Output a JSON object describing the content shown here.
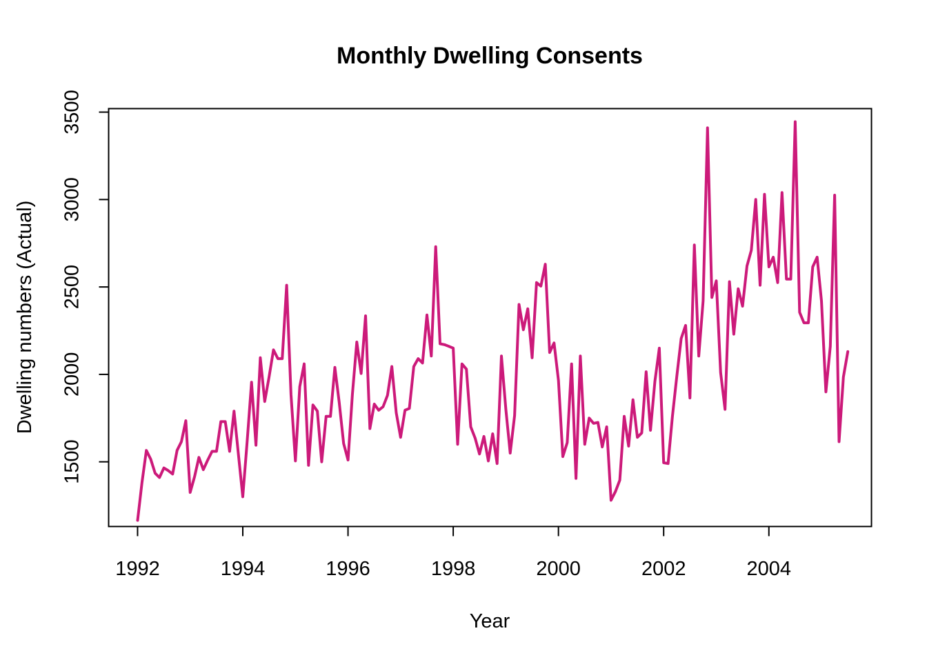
{
  "chart_data": {
    "type": "line",
    "title": "Monthly Dwelling Consents",
    "xlabel": "Year",
    "ylabel": "Dwelling numbers (Actual)",
    "xlim": [
      1991.45,
      2005.95
    ],
    "ylim": [
      1130,
      3520
    ],
    "xticks": [
      1992,
      1994,
      1996,
      1998,
      2000,
      2002,
      2004
    ],
    "yticks": [
      1500,
      2000,
      2500,
      3000,
      3500
    ],
    "grid": false,
    "legend": "none",
    "line_color": "#CC1A7A",
    "series": [
      {
        "start": 1992.0,
        "frequency": 12,
        "values": [
          1165,
          1380,
          1565,
          1515,
          1435,
          1410,
          1465,
          1450,
          1430,
          1565,
          1615,
          1735,
          1325,
          1415,
          1525,
          1455,
          1510,
          1560,
          1560,
          1730,
          1730,
          1560,
          1790,
          1545,
          1300,
          1620,
          1955,
          1595,
          2095,
          1845,
          1985,
          2140,
          2090,
          2090,
          2510,
          1885,
          1505,
          1930,
          2060,
          1480,
          1825,
          1790,
          1500,
          1760,
          1760,
          2040,
          1840,
          1605,
          1510,
          1885,
          2185,
          2005,
          2335,
          1690,
          1830,
          1795,
          1815,
          1880,
          2045,
          1780,
          1640,
          1795,
          1805,
          2045,
          2090,
          2065,
          2340,
          2105,
          2730,
          2175,
          2170,
          2160,
          2150,
          1600,
          2060,
          2030,
          1700,
          1635,
          1545,
          1645,
          1505,
          1660,
          1490,
          2105,
          1800,
          1550,
          1765,
          2400,
          2255,
          2375,
          2095,
          2525,
          2505,
          2630,
          2125,
          2180,
          1965,
          1530,
          1610,
          2060,
          1405,
          2105,
          1600,
          1750,
          1720,
          1725,
          1585,
          1700,
          1280,
          1330,
          1395,
          1760,
          1590,
          1855,
          1640,
          1665,
          2015,
          1680,
          1960,
          2150,
          1495,
          1490,
          1760,
          1990,
          2205,
          2280,
          1865,
          2740,
          2105,
          2420,
          3410,
          2440,
          2535,
          2010,
          1800,
          2530,
          2230,
          2490,
          2390,
          2620,
          2710,
          3000,
          2510,
          3030,
          2615,
          2670,
          2525,
          3040,
          2545,
          2545,
          3445,
          2355,
          2295,
          2295,
          2615,
          2670,
          2420,
          1900,
          2160,
          3025,
          1615,
          1985,
          2130
        ]
      }
    ]
  }
}
